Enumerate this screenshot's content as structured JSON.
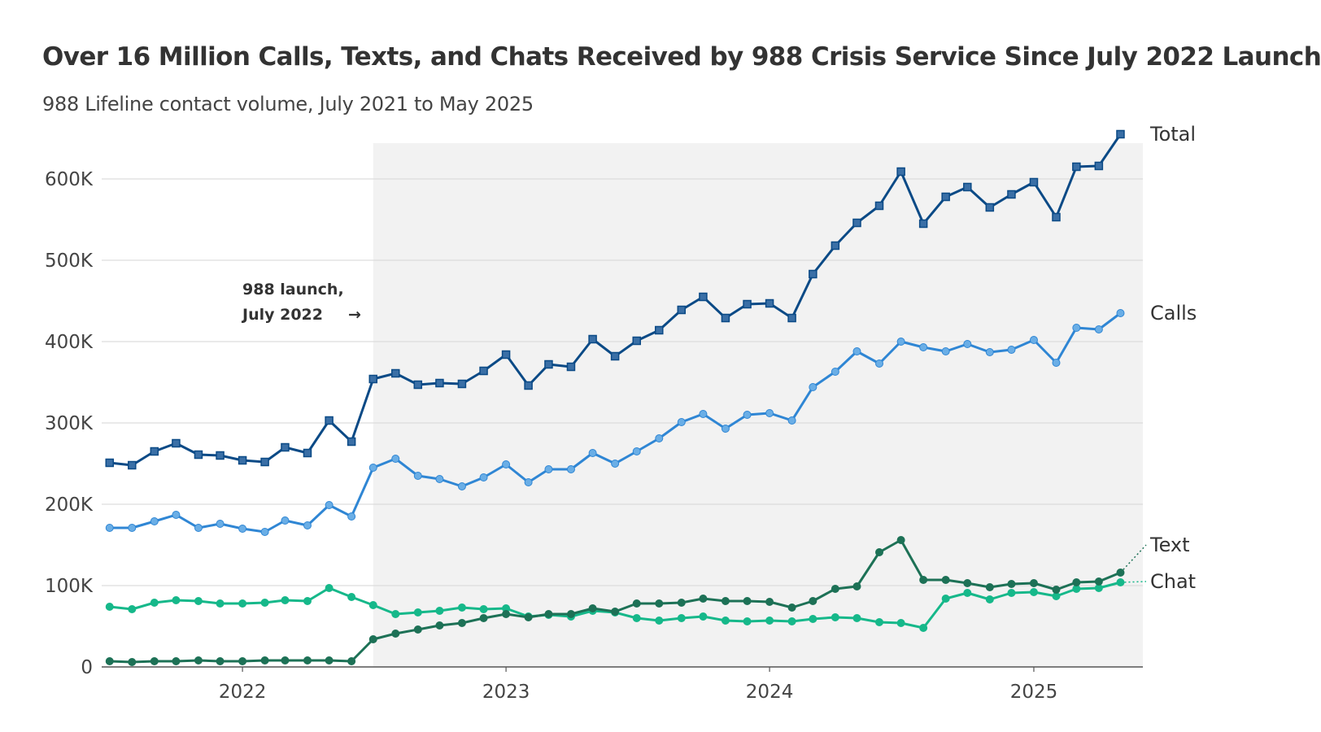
{
  "title": "Over 16 Million Calls, Texts, and Chats Received by 988 Crisis Service Since July 2022 Launch",
  "subtitle": "988 Lifeline contact volume, July 2021 to May 2025",
  "chart_data": {
    "type": "line",
    "title": "Over 16 Million Calls, Texts, and Chats Received by 988 Crisis Service Since July 2022 Launch",
    "subtitle": "988 Lifeline contact volume, July 2021 to May 2025",
    "x_start": "2021-07",
    "x_end": "2025-05",
    "xlim": [
      "2021-06-20",
      "2025-06-01"
    ],
    "ylim": [
      0,
      660000
    ],
    "x_ticks": [
      {
        "date": "2022-01",
        "label": "2022"
      },
      {
        "date": "2023-01",
        "label": "2023"
      },
      {
        "date": "2024-01",
        "label": "2024"
      },
      {
        "date": "2025-01",
        "label": "2025"
      }
    ],
    "y_ticks": [
      {
        "value": 0,
        "label": "0"
      },
      {
        "value": 100000,
        "label": "100K"
      },
      {
        "value": 200000,
        "label": "200K"
      },
      {
        "value": 300000,
        "label": "300K"
      },
      {
        "value": 400000,
        "label": "400K"
      },
      {
        "value": 500000,
        "label": "500K"
      },
      {
        "value": 600000,
        "label": "600K"
      }
    ],
    "grid": true,
    "shaded_region": {
      "from": "2022-07",
      "to": "2025-06-01"
    },
    "annotation": {
      "line1": "988 launch,",
      "line2": "July 2022",
      "arrow": "→",
      "date": "2022-07"
    },
    "series": [
      {
        "name": "Total",
        "color": "#0b4a86",
        "marker": "square",
        "values": [
          251000,
          248000,
          265000,
          275000,
          261000,
          260000,
          254000,
          252000,
          270000,
          263000,
          303000,
          277000,
          354000,
          361000,
          347000,
          349000,
          348000,
          364000,
          384000,
          346000,
          372000,
          369000,
          403000,
          382000,
          401000,
          414000,
          439000,
          455000,
          429000,
          446000,
          447000,
          429000,
          483000,
          518000,
          546000,
          567000,
          609000,
          545000,
          578000,
          590000,
          565000,
          581000,
          596000,
          553000,
          615000,
          616000,
          655000
        ]
      },
      {
        "name": "Calls",
        "color": "#2f86d4",
        "marker": "circle",
        "values": [
          171000,
          171000,
          179000,
          187000,
          171000,
          176000,
          170000,
          166000,
          180000,
          174000,
          199000,
          185000,
          245000,
          256000,
          235000,
          231000,
          222000,
          233000,
          249000,
          227000,
          243000,
          243000,
          263000,
          250000,
          265000,
          281000,
          301000,
          311000,
          293000,
          310000,
          312000,
          303000,
          344000,
          363000,
          388000,
          373000,
          400000,
          393000,
          388000,
          397000,
          387000,
          390000,
          402000,
          374000,
          417000,
          415000,
          435000
        ]
      },
      {
        "name": "Text",
        "color": "#1d7156",
        "marker": "circle",
        "values": [
          7000,
          6000,
          7000,
          7000,
          8000,
          7000,
          7000,
          8000,
          8000,
          8000,
          8000,
          7000,
          34000,
          41000,
          46000,
          51000,
          54000,
          60000,
          65000,
          61000,
          65000,
          65000,
          72000,
          68000,
          78000,
          78000,
          79000,
          84000,
          81000,
          81000,
          80000,
          73000,
          81000,
          96000,
          99000,
          141000,
          156000,
          107000,
          107000,
          103000,
          98000,
          102000,
          103000,
          95000,
          104000,
          105000,
          116000
        ]
      },
      {
        "name": "Chat",
        "color": "#16b88a",
        "marker": "circle",
        "values": [
          74000,
          71000,
          79000,
          82000,
          81000,
          78000,
          78000,
          79000,
          82000,
          81000,
          97000,
          86000,
          76000,
          65000,
          67000,
          69000,
          73000,
          71000,
          72000,
          62000,
          64000,
          62000,
          69000,
          67000,
          60000,
          57000,
          60000,
          62000,
          57000,
          56000,
          57000,
          56000,
          59000,
          61000,
          60000,
          55000,
          54000,
          48000,
          84000,
          91000,
          83000,
          91000,
          92000,
          87000,
          96000,
          97000,
          104000
        ]
      }
    ]
  }
}
